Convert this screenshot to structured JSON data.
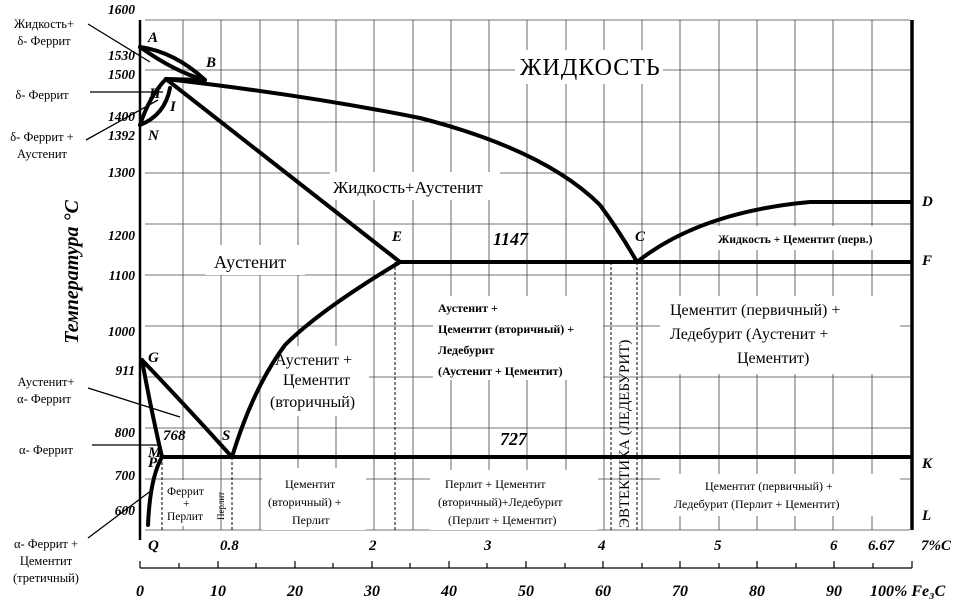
{
  "y_axis_title": "Температура °С",
  "temp_ticks": [
    "1600",
    "1530",
    "1500",
    "1400",
    "1392",
    "1300",
    "1200",
    "1100",
    "1000",
    "911",
    "800",
    "700",
    "600"
  ],
  "carbon_ticks": [
    "0.8",
    "2",
    "3",
    "4",
    "5",
    "6",
    "6.67",
    "7%C"
  ],
  "fe3c_ticks": [
    "0",
    "10",
    "20",
    "30",
    "40",
    "50",
    "60",
    "70",
    "80",
    "90",
    "100% Fe₃C"
  ],
  "points": {
    "A": "A",
    "B": "B",
    "H": "H",
    "I": "I",
    "N": "N",
    "E": "E",
    "C": "C",
    "D": "D",
    "F": "F",
    "G": "G",
    "S": "S",
    "P": "P",
    "M": "M",
    "Q": "Q",
    "K": "K",
    "L": "L"
  },
  "temps": {
    "t1147": "1147",
    "t727": "727",
    "t768": "768"
  },
  "regions": {
    "liquid": "ЖИДКОСТЬ",
    "liquid_austenite": "Жидкость+Аустенит",
    "austenite": "Аустенит",
    "liquid_cementite": "Жидкость + Цементит (перв.)",
    "aust_cem_1": "Аустенит +",
    "aust_cem_2": "Цементит",
    "aust_cem_3": "(вторичный)",
    "aust_led_1": "Аустенит +",
    "aust_led_2": "Цементит (вторичный) +",
    "aust_led_3": "Ледебурит",
    "aust_led_4": "(Аустенит + Цементит)",
    "cem_led_1": "Цементит (первичный) +",
    "cem_led_2": "Ледебурит (Аустенит +",
    "cem_led_3": "Цементит)",
    "eutectic": "ЭВТЕКТИКА (ЛЕДЕБУРИТ)",
    "ferrite_perlite_1": "Феррит",
    "ferrite_perlite_2": "+",
    "ferrite_perlite_3": "Перлит",
    "perlite": "Перлит",
    "cem_per_1": "Цементит",
    "cem_per_2": "(вторичный) +",
    "cem_per_3": "Перлит",
    "per_led_1": "Перлит + Цементит",
    "per_led_2": "(вторичный)+Ледебурит",
    "per_led_3": "(Перлит + Цементит)",
    "cem1_led_1": "Цементит (первичный) +",
    "cem1_led_2": "Ледебурит (Перлит + Цементит)"
  },
  "side_labels": {
    "liquid_delta_1": "Жидкость+",
    "liquid_delta_2": "δ- Феррит",
    "delta_ferrite": "δ- Феррит",
    "delta_aust_1": "δ- Феррит +",
    "delta_aust_2": "Аустенит",
    "aust_alpha_1": "Аустенит+",
    "aust_alpha_2": "α- Феррит",
    "alpha_ferrite": "α- Феррит",
    "alpha_cem_1": "α- Феррит +",
    "alpha_cem_2": "Цементит",
    "alpha_cem_3": "(третичный)"
  }
}
